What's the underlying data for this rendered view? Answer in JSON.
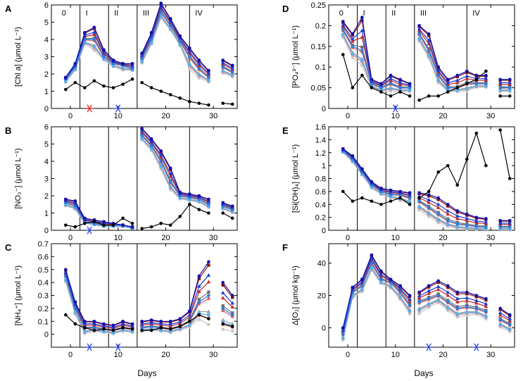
{
  "figure": {
    "x_axis_label": "Days"
  },
  "colors": {
    "ctrl": "#000000",
    "g1": "#c8c8c8",
    "g2": "#a0a0a0",
    "g3": "#707070",
    "r1": "#f09090",
    "r2": "#e06060",
    "r3": "#c02828",
    "r4": "#901010",
    "b1": "#58b0ec",
    "b2": "#2a7ee0",
    "b3": "#1a3ad8",
    "b4": "#1010b0",
    "mark_red": "#e02020",
    "mark_blue": "#2b3fd6"
  },
  "chart_data": [
    {
      "id": "A",
      "type": "line",
      "panel_letter": "A",
      "ylabel": "[Chl a] (μmol L⁻¹)",
      "xlim": [
        -4,
        35
      ],
      "ylim": [
        0,
        6
      ],
      "yticks": [
        "0",
        "1",
        "2",
        "3",
        "4",
        "5",
        "6"
      ],
      "xticks": [
        "0",
        "10",
        "20",
        "30"
      ],
      "xtick_values": [
        0,
        10,
        20,
        30
      ],
      "phase_boundaries": [
        2,
        8,
        14,
        25
      ],
      "phases": [
        "0",
        "I",
        "II",
        "III",
        "IV"
      ],
      "markers": [
        {
          "day": 4,
          "color": "red"
        },
        {
          "day": 10,
          "color": "blue"
        }
      ],
      "control": {
        "x": [
          -1,
          1,
          3,
          5,
          7,
          9,
          11,
          13,
          15,
          17,
          19,
          21,
          23,
          25,
          27,
          29,
          32,
          34
        ],
        "y": [
          1.1,
          1.5,
          1.2,
          1.6,
          1.3,
          1.2,
          1.4,
          1.7,
          1.5,
          1.2,
          1.0,
          0.8,
          0.6,
          0.4,
          0.3,
          0.2,
          0.3,
          0.25
        ]
      },
      "series": [
        {
          "name": "low",
          "values": [
            1.5,
            2.2,
            3.7,
            3.3,
            2.8,
            2.4,
            2.2,
            2.2,
            2.6,
            3.7,
            5.2,
            4.5,
            3.6,
            2.2,
            1.7,
            1.5,
            2.0,
            1.8
          ]
        },
        {
          "name": "mid",
          "values": [
            1.7,
            2.4,
            4.0,
            4.0,
            3.0,
            2.6,
            2.5,
            2.3,
            2.9,
            4.0,
            5.6,
            4.8,
            3.9,
            3.0,
            2.3,
            1.8,
            2.4,
            2.1
          ]
        },
        {
          "name": "high",
          "values": [
            1.8,
            2.6,
            4.4,
            4.7,
            3.4,
            2.8,
            2.6,
            2.6,
            3.2,
            4.4,
            6.1,
            5.2,
            4.2,
            3.5,
            2.8,
            2.2,
            2.8,
            2.5
          ]
        }
      ]
    },
    {
      "id": "B",
      "type": "line",
      "panel_letter": "B",
      "ylabel": "[NO₃⁻] (μmol L⁻¹)",
      "xlim": [
        -4,
        35
      ],
      "ylim": [
        0,
        6
      ],
      "yticks": [
        "0",
        "1",
        "2",
        "3",
        "4",
        "5",
        "6"
      ],
      "xticks": [
        "0",
        "10",
        "20",
        "30"
      ],
      "xtick_values": [
        0,
        10,
        20,
        30
      ],
      "phase_boundaries": [
        2,
        8,
        14,
        25
      ],
      "phases": [],
      "markers": [
        {
          "day": 4,
          "color": "blue"
        }
      ],
      "control": {
        "x": [
          -1,
          1,
          3,
          5,
          7,
          9,
          11,
          13,
          15,
          17,
          19,
          21,
          23,
          25,
          27,
          29,
          32,
          34
        ],
        "y": [
          0.3,
          0.2,
          0.4,
          0.5,
          0.3,
          0.3,
          0.7,
          0.4,
          0.1,
          0.2,
          0.4,
          0.3,
          0.8,
          1.5,
          1.2,
          1.0,
          1.0,
          0.7
        ]
      },
      "series": [
        {
          "name": "low",
          "values": [
            1.4,
            1.2,
            0.4,
            0.3,
            0.2,
            0.2,
            0.2,
            0.1,
            5.2,
            4.6,
            3.5,
            2.3,
            1.8,
            1.7,
            1.6,
            1.3,
            1.2,
            1.0
          ]
        },
        {
          "name": "mid",
          "values": [
            1.6,
            1.4,
            0.5,
            0.4,
            0.3,
            0.3,
            0.3,
            0.15,
            5.5,
            4.9,
            4.0,
            2.8,
            2.0,
            1.9,
            1.8,
            1.5,
            1.4,
            1.2
          ]
        },
        {
          "name": "high",
          "values": [
            1.8,
            1.7,
            0.7,
            0.6,
            0.5,
            0.4,
            0.3,
            0.2,
            5.9,
            5.3,
            4.6,
            3.6,
            2.2,
            2.1,
            2.0,
            1.8,
            1.6,
            1.4
          ]
        }
      ]
    },
    {
      "id": "C",
      "type": "line",
      "panel_letter": "C",
      "ylabel": "[NH₄⁺] (μmol L⁻¹)",
      "xlim": [
        -4,
        35
      ],
      "ylim": [
        -0.1,
        0.7
      ],
      "yticks": [
        "0",
        "0.1",
        "0.2",
        "0.3",
        "0.4",
        "0.5",
        "0.6",
        "0.7"
      ],
      "xticks": [
        "0",
        "10",
        "20",
        "30"
      ],
      "xtick_values": [
        0,
        10,
        20,
        30
      ],
      "phase_boundaries": [
        2,
        8,
        14,
        25
      ],
      "phases": [],
      "markers": [
        {
          "day": 4,
          "color": "blue"
        },
        {
          "day": 10,
          "color": "blue"
        }
      ],
      "control": {
        "x": [
          -1,
          1,
          3,
          5,
          7,
          9,
          11,
          13,
          15,
          17,
          19,
          21,
          23,
          25,
          27,
          29,
          32,
          34
        ],
        "y": [
          0.15,
          0.08,
          0.05,
          0.03,
          0.04,
          0.03,
          0.05,
          0.04,
          0.03,
          0.03,
          0.05,
          0.04,
          0.06,
          0.1,
          0.15,
          0.12,
          0.08,
          0.06
        ]
      },
      "series": [
        {
          "name": "low",
          "values": [
            0.4,
            0.15,
            0.0,
            0.02,
            0.01,
            0.0,
            0.02,
            0.01,
            0.02,
            0.03,
            0.02,
            0.01,
            0.03,
            0.05,
            0.1,
            0.05,
            0.02,
            0.01
          ]
        },
        {
          "name": "mid",
          "values": [
            0.45,
            0.2,
            0.05,
            0.05,
            0.04,
            0.03,
            0.05,
            0.04,
            0.05,
            0.06,
            0.05,
            0.04,
            0.06,
            0.1,
            0.25,
            0.3,
            0.2,
            0.15
          ]
        },
        {
          "name": "high",
          "values": [
            0.5,
            0.25,
            0.1,
            0.1,
            0.08,
            0.07,
            0.1,
            0.08,
            0.1,
            0.11,
            0.1,
            0.1,
            0.12,
            0.18,
            0.45,
            0.56,
            0.4,
            0.3
          ]
        }
      ]
    },
    {
      "id": "D",
      "type": "line",
      "panel_letter": "D",
      "ylabel": "[PO₄³⁻] (μmol L⁻¹)",
      "xlim": [
        -4,
        35
      ],
      "ylim": [
        0,
        0.25
      ],
      "yticks": [
        "0",
        "0.05",
        "0.1",
        "0.15",
        "0.2",
        "0.25"
      ],
      "xticks": [
        "0",
        "10",
        "20",
        "30"
      ],
      "xtick_values": [
        0,
        10,
        20,
        30
      ],
      "phase_boundaries": [
        2,
        8,
        14,
        25
      ],
      "phases": [
        "0",
        "I",
        "II",
        "III",
        "IV"
      ],
      "markers": [
        {
          "day": 10,
          "color": "blue"
        }
      ],
      "control": {
        "x": [
          -1,
          1,
          3,
          5,
          7,
          9,
          11,
          13,
          15,
          17,
          19,
          21,
          23,
          25,
          27,
          29,
          32,
          34
        ],
        "y": [
          0.13,
          0.05,
          0.08,
          0.05,
          0.04,
          0.03,
          0.04,
          0.03,
          0.02,
          0.03,
          0.03,
          0.04,
          0.05,
          0.06,
          0.07,
          0.09,
          0.03,
          0.03
        ]
      },
      "series": [
        {
          "name": "low",
          "values": [
            0.17,
            0.12,
            0.1,
            0.05,
            0.04,
            0.04,
            0.04,
            0.04,
            0.16,
            0.12,
            0.06,
            0.04,
            0.04,
            0.04,
            0.05,
            0.05,
            0.04,
            0.04
          ]
        },
        {
          "name": "mid",
          "values": [
            0.19,
            0.15,
            0.14,
            0.06,
            0.05,
            0.06,
            0.05,
            0.05,
            0.18,
            0.14,
            0.08,
            0.05,
            0.05,
            0.06,
            0.06,
            0.06,
            0.05,
            0.05
          ]
        },
        {
          "name": "high",
          "values": [
            0.21,
            0.18,
            0.22,
            0.07,
            0.06,
            0.08,
            0.07,
            0.06,
            0.2,
            0.18,
            0.1,
            0.07,
            0.08,
            0.09,
            0.08,
            0.08,
            0.07,
            0.07
          ]
        }
      ]
    },
    {
      "id": "E",
      "type": "line",
      "panel_letter": "E",
      "ylabel": "[Si(OH)₄] (μmol L⁻¹)",
      "xlim": [
        -4,
        35
      ],
      "ylim": [
        0,
        1.6
      ],
      "yticks": [
        "0",
        "0.2",
        "0.4",
        "0.6",
        "0.8",
        "1",
        "1.2",
        "1.4",
        "1.6"
      ],
      "xticks": [
        "0",
        "10",
        "20",
        "30"
      ],
      "xtick_values": [
        0,
        10,
        20,
        30
      ],
      "phase_boundaries": [
        2,
        8,
        14,
        25
      ],
      "phases": [],
      "markers": [],
      "control": {
        "x": [
          -1,
          1,
          3,
          5,
          7,
          9,
          11,
          13,
          15,
          17,
          19,
          21,
          23,
          25,
          27,
          29,
          32,
          34
        ],
        "y": [
          0.6,
          0.45,
          0.5,
          0.45,
          0.4,
          0.45,
          0.5,
          0.4,
          0.5,
          0.6,
          0.9,
          1.0,
          0.7,
          1.1,
          1.5,
          1.0,
          1.55,
          0.8
        ]
      },
      "series": [
        {
          "name": "low",
          "values": [
            1.2,
            1.05,
            0.85,
            0.65,
            0.55,
            0.5,
            0.45,
            0.4,
            0.3,
            0.2,
            0.1,
            0.05,
            0.02,
            0.01,
            0.01,
            0.0,
            0.0,
            0.0
          ]
        },
        {
          "name": "mid",
          "values": [
            1.23,
            1.1,
            0.9,
            0.7,
            0.6,
            0.55,
            0.55,
            0.5,
            0.45,
            0.35,
            0.25,
            0.15,
            0.1,
            0.08,
            0.06,
            0.05,
            0.05,
            0.05
          ]
        },
        {
          "name": "high",
          "values": [
            1.26,
            1.15,
            0.95,
            0.75,
            0.65,
            0.62,
            0.6,
            0.58,
            0.58,
            0.55,
            0.5,
            0.4,
            0.3,
            0.25,
            0.2,
            0.18,
            0.15,
            0.15
          ]
        }
      ]
    },
    {
      "id": "F",
      "type": "line",
      "panel_letter": "F",
      "ylabel": "Δ[O₂] (μmol kg⁻¹)",
      "xlim": [
        -4,
        35
      ],
      "ylim": [
        -12,
        52
      ],
      "yticks": [
        "0",
        "20",
        "40"
      ],
      "ytick_values": [
        0,
        20,
        40
      ],
      "xticks": [
        "0",
        "10",
        "20",
        "30"
      ],
      "xtick_values": [
        0,
        10,
        20,
        30
      ],
      "phase_boundaries": [
        2,
        8,
        14,
        25
      ],
      "phases": [],
      "markers": [
        {
          "day": 17,
          "color": "blue"
        },
        {
          "day": 27,
          "color": "blue"
        }
      ],
      "control": null,
      "series": [
        {
          "name": "low",
          "values": [
            -8,
            18,
            22,
            35,
            27,
            24,
            17,
            8,
            8,
            12,
            15,
            10,
            6,
            7,
            8,
            5,
            0,
            -3
          ]
        },
        {
          "name": "mid",
          "values": [
            -4,
            22,
            26,
            40,
            30,
            28,
            22,
            14,
            16,
            18,
            20,
            16,
            12,
            13,
            12,
            10,
            5,
            2
          ]
        },
        {
          "name": "high",
          "values": [
            0,
            25,
            30,
            45,
            35,
            30,
            26,
            20,
            22,
            26,
            29,
            26,
            22,
            22,
            20,
            18,
            12,
            8
          ]
        }
      ]
    }
  ]
}
